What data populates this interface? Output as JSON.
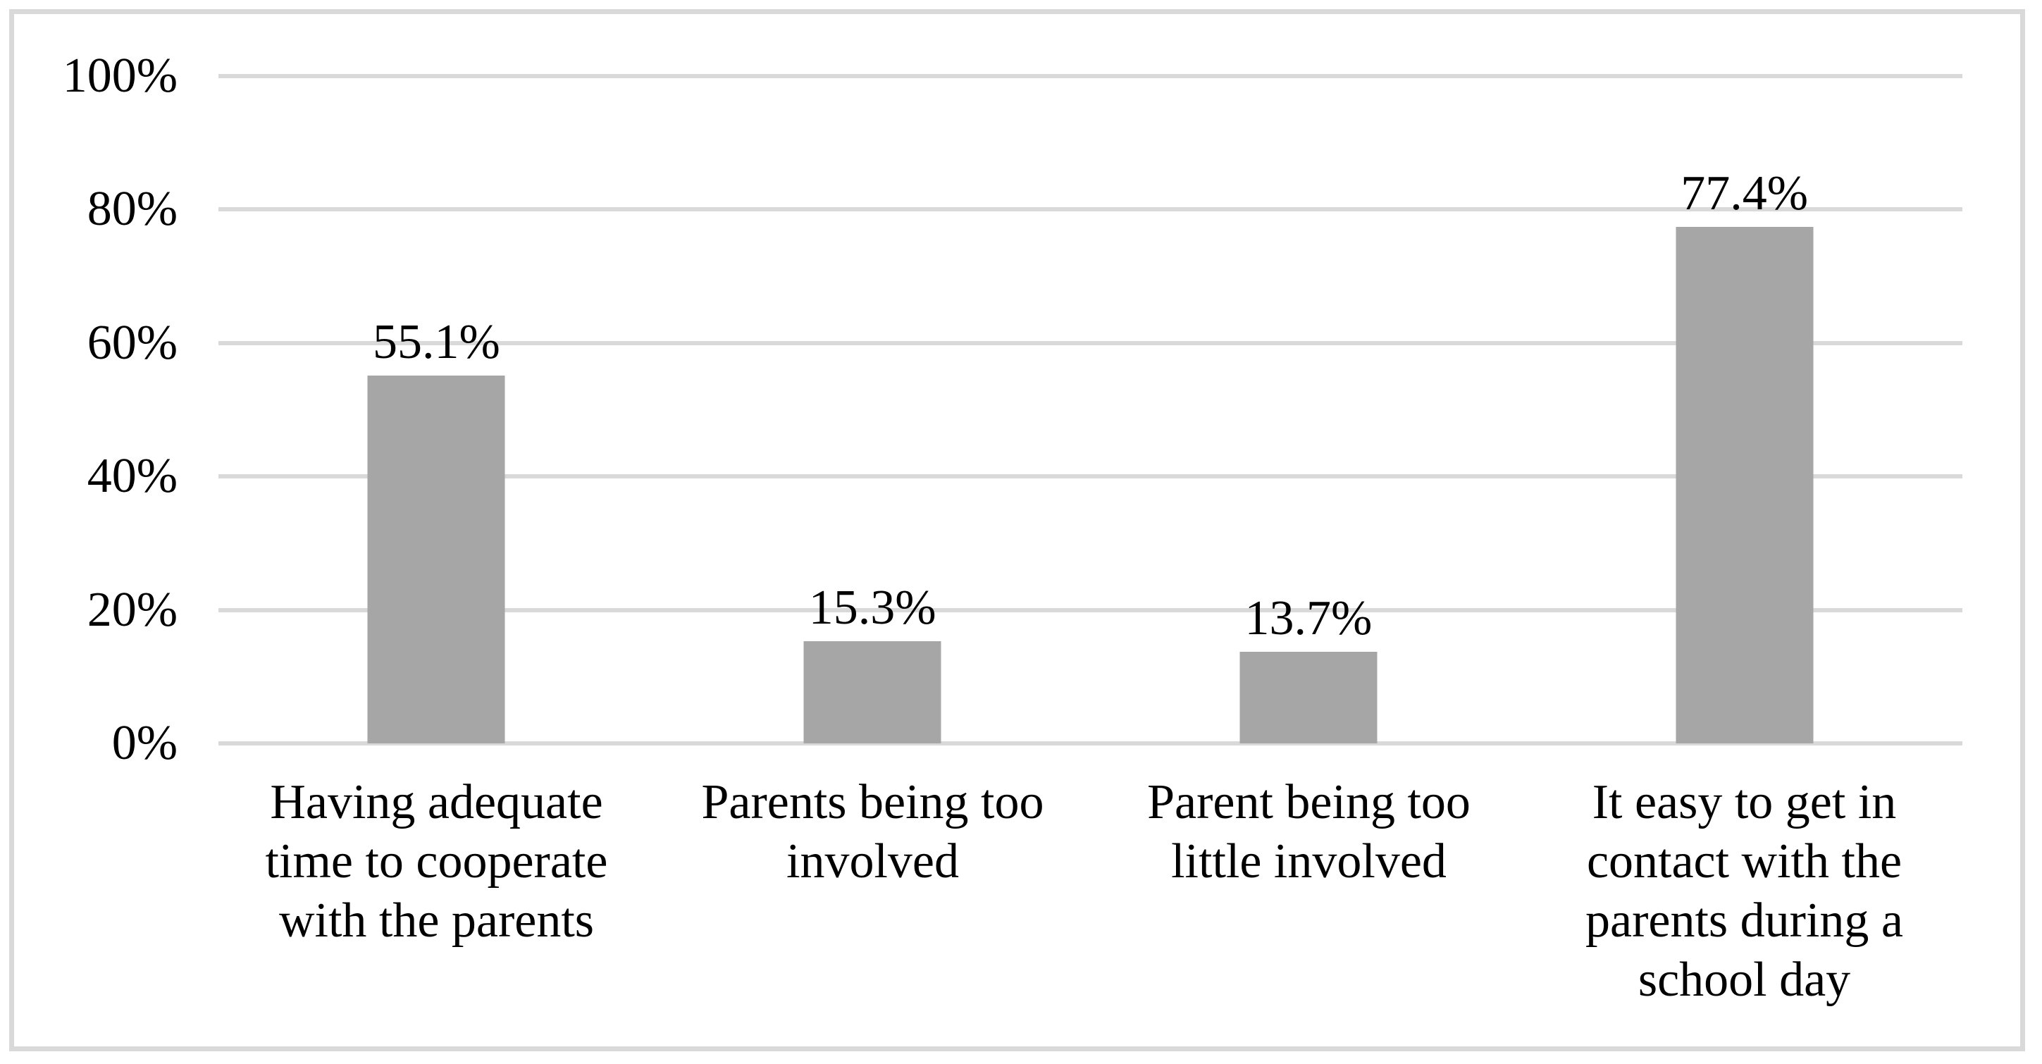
{
  "chart_data": {
    "type": "bar",
    "title": "",
    "xlabel": "",
    "ylabel": "",
    "categories": [
      "Having adequate time to cooperate with the parents",
      "Parents being too involved",
      "Parent being too little involved",
      "It easy to get in contact with the parents during a school day"
    ],
    "category_lines": [
      "Having adequate\ntime to cooperate\nwith the parents",
      "Parents being too\ninvolved",
      "Parent being too\nlittle involved",
      "It easy to get in\ncontact with the\nparents during a\nschool day"
    ],
    "values": [
      55.1,
      15.3,
      13.7,
      77.4
    ],
    "value_labels": [
      "55.1%",
      "15.3%",
      "13.7%",
      "77.4%"
    ],
    "y_ticks": [
      "100%",
      "80%",
      "60%",
      "40%",
      "20%",
      "0%"
    ],
    "ylim": [
      0,
      100
    ],
    "y_tick_step": 20,
    "grid": "horizontal",
    "legend": "none",
    "bar_color": "#a6a6a6",
    "gridline_color": "#d9d9d9",
    "border_color": "#d9d9d9",
    "text_color": "#000000",
    "background_color": "#ffffff"
  }
}
